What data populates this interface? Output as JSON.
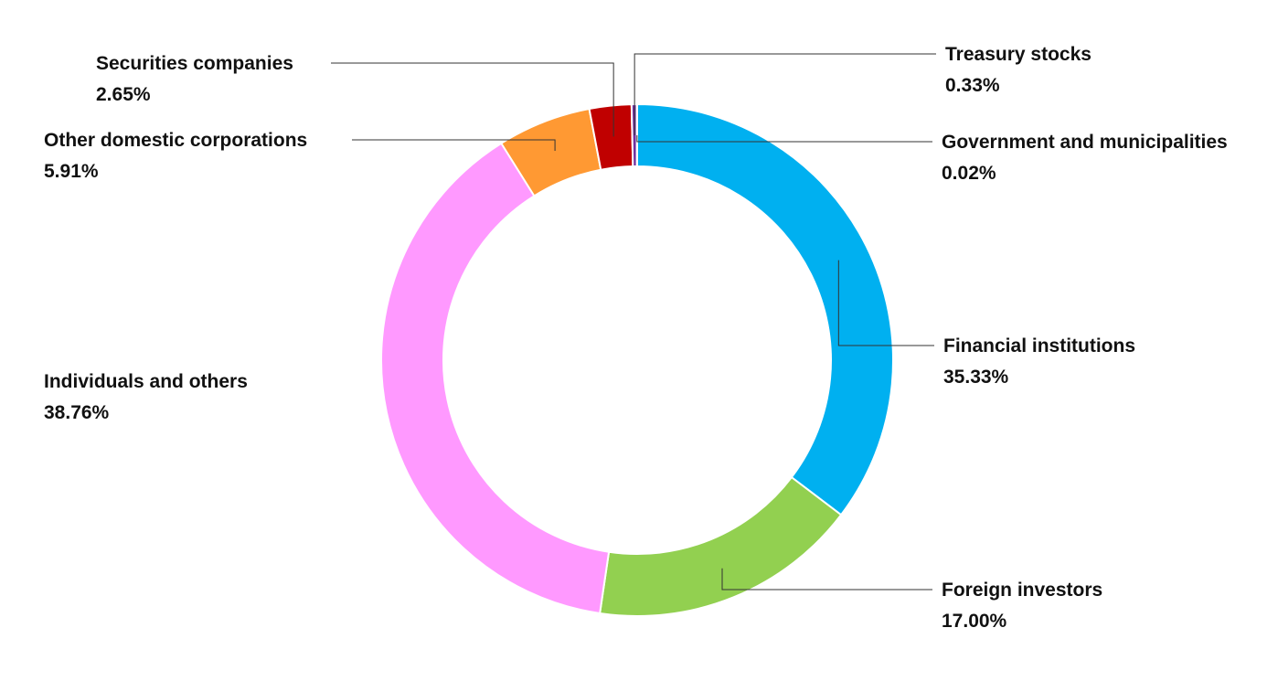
{
  "chart_data": {
    "type": "pie",
    "variant": "donut",
    "title": "",
    "series": [
      {
        "name": "Financial institutions",
        "value": 35.33,
        "display": "35.33%",
        "color": "#00B0F0"
      },
      {
        "name": "Foreign investors",
        "value": 17.0,
        "display": "17.00%",
        "color": "#92D050"
      },
      {
        "name": "Individuals and others",
        "value": 38.76,
        "display": "38.76%",
        "color": "#FF99FF"
      },
      {
        "name": "Other domestic corporations",
        "value": 5.91,
        "display": "5.91%",
        "color": "#FF9933"
      },
      {
        "name": "Securities companies",
        "value": 2.65,
        "display": "2.65%",
        "color": "#C00000"
      },
      {
        "name": "Treasury stocks",
        "value": 0.33,
        "display": "0.33%",
        "color": "#7030A0"
      },
      {
        "name": "Government and municipalities",
        "value": 0.02,
        "display": "0.02%",
        "color": "#1F3864"
      }
    ],
    "start_angle": "12 o'clock",
    "direction": "clockwise",
    "legend": "none",
    "labels": "outside with leader lines"
  }
}
